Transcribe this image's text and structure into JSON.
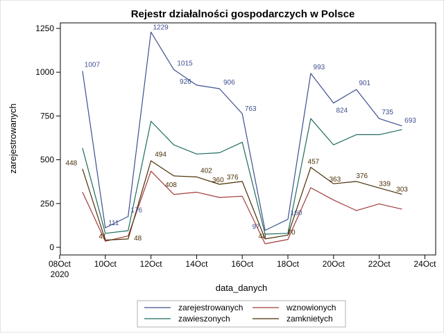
{
  "chart_data": {
    "type": "line",
    "title": "Rejestr działalności gospodarczych w Polsce",
    "xlabel": "data_danych",
    "ylabel": "zarejestrowanych",
    "x_ticks": [
      "08Oct",
      "10Oct",
      "12Oct",
      "14Oct",
      "16Oct",
      "18Oct",
      "20Oct",
      "22Oct",
      "24Oct"
    ],
    "x_tick_year": "2020",
    "x_range": [
      "2020-10-08",
      "2020-10-24"
    ],
    "y_ticks": [
      "0",
      "250",
      "500",
      "750",
      "1000",
      "1250"
    ],
    "ylim": [
      0,
      1250
    ],
    "x": [
      "2020-10-09",
      "2020-10-10",
      "2020-10-11",
      "2020-10-12",
      "2020-10-13",
      "2020-10-14",
      "2020-10-15",
      "2020-10-16",
      "2020-10-17",
      "2020-10-18",
      "2020-10-19",
      "2020-10-20",
      "2020-10-21",
      "2020-10-22",
      "2020-10-23"
    ],
    "series": [
      {
        "name": "zarejestrowanych",
        "color": "#3d4f8f",
        "values": [
          1007,
          111,
          176,
          1229,
          1015,
          926,
          906,
          763,
          97,
          160,
          993,
          824,
          901,
          735,
          693
        ],
        "labels": [
          "1007",
          "111",
          "176",
          "1229",
          "1015",
          "926",
          "906",
          "763",
          "97",
          "160",
          "993",
          "824",
          "901",
          "735",
          "693"
        ]
      },
      {
        "name": "wznowionych",
        "color": "#a23a3a",
        "values": [
          315,
          35,
          65,
          435,
          302,
          315,
          285,
          292,
          20,
          45,
          340,
          270,
          210,
          248,
          218
        ]
      },
      {
        "name": "zawieszonych",
        "color": "#1d6b5e",
        "values": [
          567,
          80,
          95,
          720,
          585,
          533,
          540,
          600,
          75,
          80,
          735,
          585,
          643,
          643,
          672
        ]
      },
      {
        "name": "zamknietych",
        "color": "#4a2e05",
        "values": [
          448,
          41,
          48,
          494,
          408,
          402,
          360,
          376,
          48,
          70,
          457,
          363,
          376,
          339,
          303
        ],
        "labels": [
          "448",
          "41",
          "48",
          "494",
          "408",
          "402",
          "360",
          "376",
          "48",
          "70",
          "457",
          "363",
          "376",
          "339",
          "303"
        ]
      }
    ],
    "legend": {
      "placement": "bottom",
      "entries": [
        "zarejestrowanych",
        "wznowionych",
        "zawieszonych",
        "zamknietych"
      ]
    },
    "grid": false
  }
}
